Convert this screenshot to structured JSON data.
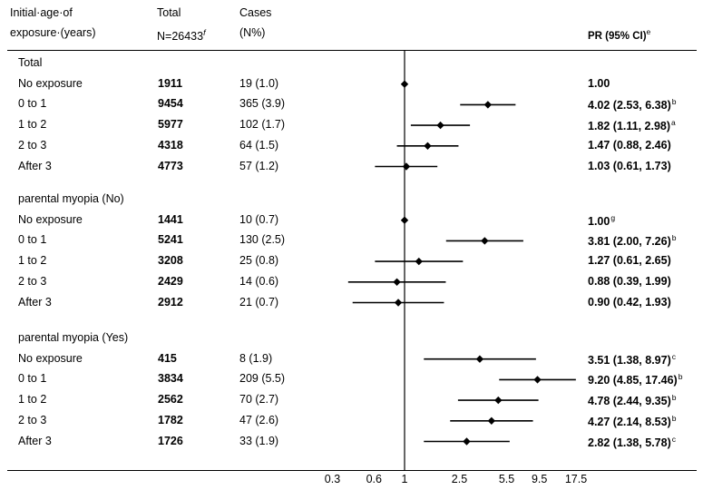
{
  "header": {
    "col1_line1": "Initial·age·of",
    "col1_line2": "exposure·(years)",
    "col2_line1": "Total",
    "col2_line2": "N=26433",
    "col2_sup": "f",
    "col3_line1": "Cases",
    "col3_line2": "(N%)",
    "pr_label": "PR (95% CI)",
    "pr_sup": "e"
  },
  "sections": [
    {
      "title": "Total",
      "rows": [
        {
          "label": "No exposure",
          "total": "1911",
          "cases": "19 (1.0)",
          "pr_text": "1.00",
          "sup": "",
          "pr": 1.0,
          "lo": 1.0,
          "hi": 1.0
        },
        {
          "label": "0 to 1",
          "total": "9454",
          "cases": "365 (3.9)",
          "pr_text": "4.02 (2.53, 6.38)",
          "sup": "b",
          "pr": 4.02,
          "lo": 2.53,
          "hi": 6.38
        },
        {
          "label": "1 to 2",
          "total": "5977",
          "cases": "102 (1.7)",
          "pr_text": "1.82 (1.11, 2.98)",
          "sup": "a",
          "pr": 1.82,
          "lo": 1.11,
          "hi": 2.98
        },
        {
          "label": "2 to 3",
          "total": "4318",
          "cases": "64 (1.5)",
          "pr_text": "1.47 (0.88, 2.46)",
          "sup": "",
          "pr": 1.47,
          "lo": 0.88,
          "hi": 2.46
        },
        {
          "label": "After 3",
          "total": "4773",
          "cases": "57 (1.2)",
          "pr_text": "1.03 (0.61, 1.73)",
          "sup": "",
          "pr": 1.03,
          "lo": 0.61,
          "hi": 1.73
        }
      ]
    },
    {
      "title": "parental myopia (No)",
      "rows": [
        {
          "label": "No exposure",
          "total": "1441",
          "cases": "10 (0.7)",
          "pr_text": "1.00",
          "sup": "g",
          "pr": 1.0,
          "lo": 1.0,
          "hi": 1.0
        },
        {
          "label": "0 to 1",
          "total": "5241",
          "cases": "130 (2.5)",
          "pr_text": "3.81 (2.00, 7.26)",
          "sup": "b",
          "pr": 3.81,
          "lo": 2.0,
          "hi": 7.26
        },
        {
          "label": "1 to 2",
          "total": "3208",
          "cases": "25 (0.8)",
          "pr_text": "1.27 (0.61, 2.65)",
          "sup": "",
          "pr": 1.27,
          "lo": 0.61,
          "hi": 2.65
        },
        {
          "label": "2 to 3",
          "total": "2429",
          "cases": "14 (0.6)",
          "pr_text": "0.88 (0.39, 1.99)",
          "sup": "",
          "pr": 0.88,
          "lo": 0.39,
          "hi": 1.99
        },
        {
          "label": "After 3",
          "total": "2912",
          "cases": "21 (0.7)",
          "pr_text": "0.90 (0.42, 1.93)",
          "sup": "",
          "pr": 0.9,
          "lo": 0.42,
          "hi": 1.93
        }
      ]
    },
    {
      "title": "parental myopia (Yes)",
      "rows": [
        {
          "label": "No exposure",
          "total": "415",
          "cases": "8 (1.9)",
          "pr_text": "3.51 (1.38, 8.97)",
          "sup": "c",
          "pr": 3.51,
          "lo": 1.38,
          "hi": 8.97
        },
        {
          "label": "0 to 1",
          "total": "3834",
          "cases": "209 (5.5)",
          "pr_text": "9.20 (4.85, 17.46)",
          "sup": "b",
          "pr": 9.2,
          "lo": 4.85,
          "hi": 17.46
        },
        {
          "label": "1 to 2",
          "total": "2562",
          "cases": "70 (2.7)",
          "pr_text": "4.78 (2.44, 9.35)",
          "sup": "b",
          "pr": 4.78,
          "lo": 2.44,
          "hi": 9.35
        },
        {
          "label": "2 to 3",
          "total": "1782",
          "cases": "47 (2.6)",
          "pr_text": "4.27 (2.14, 8.53)",
          "sup": "b",
          "pr": 4.27,
          "lo": 2.14,
          "hi": 8.53
        },
        {
          "label": "After 3",
          "total": "1726",
          "cases": "33 (1.9)",
          "pr_text": "2.82 (1.38, 5.78)",
          "sup": "c",
          "pr": 2.82,
          "lo": 1.38,
          "hi": 5.78
        }
      ]
    }
  ],
  "chart_data": {
    "type": "forest",
    "x_scale": "log",
    "reference_line": 1,
    "x_ticks": [
      0.3,
      0.6,
      1,
      2.5,
      5.5,
      9.5,
      17.5
    ],
    "x_tick_labels": [
      "0.3",
      "0.6",
      "1",
      "2.5",
      "5.5",
      "9.5",
      "17.5"
    ],
    "xlim": [
      0.3,
      17.5
    ]
  },
  "colors": {
    "ink": "#000000",
    "background": "#ffffff"
  }
}
